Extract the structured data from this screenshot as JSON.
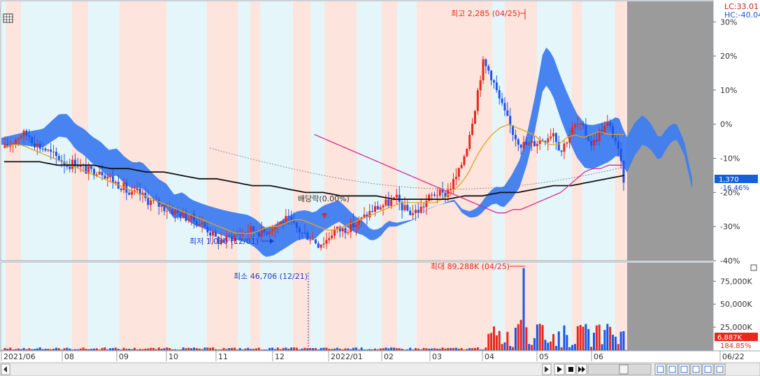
{
  "header_icon": "table-grid-icon",
  "corner_icon": "square-icon",
  "readouts": {
    "lc": "LC:33.01",
    "hc": "HC:-40.04",
    "price_badge": "1,370",
    "price_pct": "-16.46%",
    "vol_badge": "6,887K",
    "vol_pct": "184.85%"
  },
  "annotations": {
    "high": "최고 2,285 (04/25)",
    "low": "최저 1,030 (12/01)",
    "vol_max": "최대 89,288K (04/25)",
    "vol_min": "최소 46,706 (12/21)",
    "ex_div": "배당락(0.00%)"
  },
  "colors": {
    "band_pink": "#fde4dc",
    "band_cyan": "#e5f6fb",
    "cloud": "#3f7df0",
    "candle_up": "#e8281e",
    "candle_down": "#1e55e8",
    "ma_short": "#d62d8a",
    "ma_mid": "#e0a41e",
    "ma_long": "#111111",
    "vol_up": "#e8281e",
    "vol_down": "#1e55e8",
    "future_area": "#9b9b9b",
    "badge_price": "#1560d8",
    "badge_vol": "#e8281e"
  },
  "toolbar": {
    "scroll_left_icon": "triangle-left-icon",
    "scroll_right_icon": "triangle-right-icon",
    "play_icon": "play-icon",
    "stop_icon": "stop-icon",
    "fast_forward_icon": "fast-forward-icon",
    "tool_icons": [
      "zoom-window-icon",
      "fit-icon",
      "zoom-in-icon",
      "zoom-out-icon",
      "crosshair-icon",
      "settings-icon"
    ]
  },
  "chart_data": {
    "type": "line",
    "price_axis": {
      "ticks": [
        "30%",
        "20%",
        "10%",
        "0%",
        "-10%",
        "-20%",
        "-30%",
        "-40%"
      ],
      "range_pct": [
        -40,
        36
      ]
    },
    "volume_axis": {
      "ticks": [
        "75,000K",
        "50,000K",
        "25,000K"
      ],
      "range": [
        0,
        95000
      ]
    },
    "x_ticks": [
      "2021/06",
      "08",
      "09",
      "10",
      "11",
      "12",
      "2022/01",
      "02",
      "03",
      "04",
      "05",
      "06",
      "06/22"
    ],
    "series": [
      {
        "values": [
          -7,
          -5,
          -3,
          -3,
          -6,
          -7,
          -9,
          -10,
          -12,
          -11,
          -13,
          -14,
          -13,
          -15,
          -17,
          -18,
          -21,
          -20,
          -22,
          -23,
          -24,
          -25,
          -26,
          -27,
          -28,
          -29,
          -31,
          -34,
          -34,
          -33,
          -32,
          -31,
          -31,
          -32,
          -30,
          -29,
          -28,
          -30,
          -32,
          -33,
          -35,
          -34,
          -31,
          -31,
          -30,
          -29,
          -27,
          -25,
          -24,
          -23,
          -22,
          -25,
          -26,
          -25,
          -22,
          -20,
          -21,
          -18,
          -14,
          -6,
          5,
          18,
          15,
          8,
          2,
          -3,
          -6,
          -6,
          -5,
          -4,
          -2,
          -8,
          -3,
          0,
          -2,
          -6,
          -2,
          0,
          -5,
          -16
        ]
      },
      {
        "values": [
          -7,
          -6,
          -6,
          -7,
          -8,
          -9,
          -10,
          -11,
          -12,
          -13,
          -14,
          -15,
          -16,
          -17,
          -18,
          -19,
          -20,
          -21,
          -22,
          -23,
          -24,
          -25,
          -26,
          -27,
          -28,
          -29,
          -30,
          -31,
          -32,
          -32,
          -32,
          -31,
          -30,
          -30,
          -29,
          -28,
          -28,
          -29,
          -30,
          -31,
          -31,
          -30,
          -29,
          -28,
          -27,
          -26,
          -25,
          -24,
          -23,
          -23,
          -23,
          -23,
          -23,
          -22,
          -20,
          -18,
          -15,
          -10,
          -6,
          -3,
          -1,
          0,
          -1,
          -2,
          -3,
          -5,
          -6,
          -6,
          -4,
          -3,
          -4,
          -3,
          -2,
          -3,
          -3,
          -3
        ]
      },
      {
        "values": [
          -11,
          -11,
          -11,
          -12,
          -12,
          -12,
          -13,
          -13,
          -14,
          -14,
          -15,
          -16,
          -16,
          -17,
          -18,
          -18,
          -19,
          -20,
          -20,
          -21,
          -21,
          -21,
          -22,
          -22,
          -22,
          -22,
          -21,
          -21,
          -20,
          -20,
          -19,
          -18,
          -18,
          -17,
          -16,
          -15
        ]
      },
      {
        "values": [
          -3,
          -4,
          -5,
          -6,
          -7,
          -8,
          -9,
          -10,
          -11,
          -12,
          -13,
          -14,
          -15,
          -16,
          -17,
          -18,
          -19,
          -20,
          -21,
          -22,
          -23,
          -24,
          -25,
          -26,
          -26,
          -25,
          -25,
          -24,
          -23,
          -22,
          -21,
          -20,
          -18,
          -16,
          -14,
          -13,
          -13,
          -12,
          -12,
          -12
        ]
      }
    ]
  }
}
